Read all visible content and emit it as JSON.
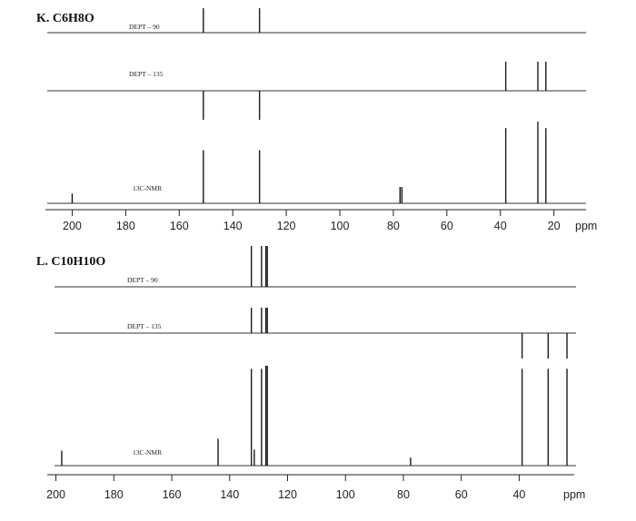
{
  "panels": [
    {
      "title": "K. C6H8O"
    },
    {
      "title": "L. C10H10O"
    }
  ],
  "chart_data": [
    {
      "type": "line",
      "title": "K. C6H8O",
      "xlabel": "ppm",
      "x_axis_reversed": true,
      "xlim": [
        210,
        8
      ],
      "x_ticks": [
        200,
        180,
        160,
        140,
        120,
        100,
        80,
        60,
        40,
        20
      ],
      "series": [
        {
          "name": "DEPT – 90",
          "peaks": [
            {
              "x": 151,
              "y": 1
            },
            {
              "x": 130,
              "y": 1
            }
          ]
        },
        {
          "name": "DEPT – 135",
          "peaks": [
            {
              "x": 151,
              "y": -1
            },
            {
              "x": 130,
              "y": -1
            },
            {
              "x": 38,
              "y": 1
            },
            {
              "x": 26,
              "y": 1
            },
            {
              "x": 23,
              "y": 1
            }
          ]
        },
        {
          "name": "13C-NMR",
          "peaks": [
            {
              "x": 200,
              "y": 0.12
            },
            {
              "x": 151,
              "y": 0.65
            },
            {
              "x": 130,
              "y": 0.65
            },
            {
              "x": 77.5,
              "y": 0.2
            },
            {
              "x": 76.8,
              "y": 0.2
            },
            {
              "x": 38,
              "y": 0.92
            },
            {
              "x": 26,
              "y": 1.0
            },
            {
              "x": 23,
              "y": 0.92
            }
          ]
        }
      ]
    },
    {
      "type": "line",
      "title": "L. C10H10O",
      "xlabel": "ppm",
      "x_axis_reversed": true,
      "xlim": [
        203,
        21
      ],
      "x_ticks": [
        200,
        180,
        160,
        140,
        120,
        100,
        80,
        60,
        40
      ],
      "series": [
        {
          "name": "DEPT – 90",
          "peaks": [
            {
              "x": 132.5,
              "y": 1
            },
            {
              "x": 129,
              "y": 1
            },
            {
              "x": 127.5,
              "y": 1
            },
            {
              "x": 127,
              "y": 1
            }
          ]
        },
        {
          "name": "DEPT – 135",
          "peaks": [
            {
              "x": 132.5,
              "y": 1
            },
            {
              "x": 129,
              "y": 1
            },
            {
              "x": 127.5,
              "y": 1
            },
            {
              "x": 127,
              "y": 1
            },
            {
              "x": 39,
              "y": -1
            },
            {
              "x": 30,
              "y": -1
            },
            {
              "x": 23.5,
              "y": -1
            }
          ]
        },
        {
          "name": "13C-NMR",
          "peaks": [
            {
              "x": 198,
              "y": 0.15
            },
            {
              "x": 144,
              "y": 0.27
            },
            {
              "x": 132.5,
              "y": 0.97
            },
            {
              "x": 131.5,
              "y": 0.16
            },
            {
              "x": 129,
              "y": 0.97
            },
            {
              "x": 127.5,
              "y": 1.0
            },
            {
              "x": 127,
              "y": 1.0
            },
            {
              "x": 77.5,
              "y": 0.08
            },
            {
              "x": 39,
              "y": 0.97
            },
            {
              "x": 30,
              "y": 0.97
            },
            {
              "x": 23.5,
              "y": 0.97
            }
          ]
        }
      ]
    }
  ]
}
